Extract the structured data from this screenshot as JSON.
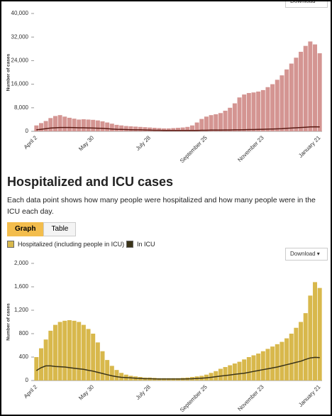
{
  "chart_data": [
    {
      "type": "bar",
      "y_label": "Number of cases",
      "download": "Download",
      "categories": [
        "April 2",
        null,
        null,
        null,
        null,
        null,
        null,
        null,
        null,
        null,
        null,
        null,
        "May 30",
        null,
        null,
        null,
        null,
        null,
        null,
        null,
        null,
        null,
        null,
        null,
        "July 28",
        null,
        null,
        null,
        null,
        null,
        null,
        null,
        null,
        null,
        null,
        null,
        "September 25",
        null,
        null,
        null,
        null,
        null,
        null,
        null,
        null,
        null,
        null,
        null,
        "November 23",
        null,
        null,
        null,
        null,
        null,
        null,
        null,
        null,
        null,
        null,
        null,
        "January 21"
      ],
      "series": [
        {
          "type": "bar",
          "color": "#d49592",
          "values": [
            2000,
            2800,
            3500,
            4500,
            5200,
            5500,
            5000,
            4600,
            4300,
            4000,
            4100,
            4000,
            3900,
            3700,
            3400,
            3000,
            2600,
            2200,
            2000,
            1800,
            1700,
            1600,
            1500,
            1400,
            1300,
            1200,
            1100,
            1000,
            1000,
            1100,
            1200,
            1300,
            1500,
            2000,
            3000,
            4200,
            5000,
            5500,
            5800,
            6200,
            7000,
            8000,
            9500,
            11500,
            12500,
            13000,
            13200,
            13500,
            14000,
            15000,
            16000,
            17500,
            19000,
            21000,
            23000,
            25000,
            27000,
            29000,
            30500,
            29500,
            26500
          ]
        },
        {
          "type": "line",
          "color": "#5a1a14",
          "values": [
            500,
            700,
            900,
            1100,
            1200,
            1300,
            1300,
            1300,
            1250,
            1200,
            1200,
            1150,
            1100,
            1050,
            1000,
            900,
            800,
            700,
            650,
            600,
            550,
            500,
            500,
            450,
            400,
            350,
            350,
            300,
            300,
            300,
            300,
            300,
            300,
            300,
            300,
            350,
            350,
            400,
            400,
            400,
            450,
            450,
            500,
            500,
            550,
            600,
            600,
            650,
            700,
            750,
            800,
            850,
            900,
            1000,
            1100,
            1200,
            1300,
            1400,
            1500,
            1550,
            1500
          ]
        }
      ],
      "ylim": [
        0,
        40000
      ],
      "yticks": [
        0,
        {
          "value": 8000,
          "label": "8,000"
        },
        {
          "value": 16000,
          "label": "16,000"
        },
        {
          "value": 24000,
          "label": "24,000"
        },
        {
          "value": 32000,
          "label": "32,000"
        },
        {
          "value": 40000,
          "label": "40,000"
        }
      ]
    },
    {
      "type": "bar",
      "y_label": "Number of cases",
      "download": "Download",
      "categories": [
        "April 2",
        null,
        null,
        null,
        null,
        null,
        null,
        null,
        null,
        null,
        null,
        null,
        "May 30",
        null,
        null,
        null,
        null,
        null,
        null,
        null,
        null,
        null,
        null,
        null,
        "July 28",
        null,
        null,
        null,
        null,
        null,
        null,
        null,
        null,
        null,
        null,
        null,
        "September 25",
        null,
        null,
        null,
        null,
        null,
        null,
        null,
        null,
        null,
        null,
        null,
        "November 23",
        null,
        null,
        null,
        null,
        null,
        null,
        null,
        null,
        null,
        null,
        null,
        "January 21"
      ],
      "series": [
        {
          "type": "bar",
          "name": "Hospitalized (including people in ICU)",
          "color": "#d8b84c",
          "values": [
            400,
            550,
            700,
            850,
            950,
            1000,
            1020,
            1030,
            1020,
            1000,
            950,
            880,
            800,
            650,
            500,
            350,
            250,
            180,
            130,
            100,
            80,
            70,
            60,
            50,
            50,
            45,
            40,
            40,
            40,
            40,
            40,
            45,
            50,
            60,
            70,
            80,
            100,
            130,
            160,
            200,
            230,
            260,
            290,
            320,
            360,
            400,
            430,
            460,
            500,
            540,
            580,
            620,
            660,
            720,
            800,
            900,
            1000,
            1150,
            1450,
            1680,
            1580
          ]
        },
        {
          "type": "line",
          "name": "In ICU",
          "color": "#3a3318",
          "values": [
            170,
            220,
            250,
            250,
            240,
            235,
            230,
            220,
            210,
            200,
            190,
            175,
            160,
            140,
            120,
            100,
            80,
            65,
            55,
            50,
            45,
            40,
            35,
            30,
            30,
            28,
            25,
            25,
            25,
            25,
            25,
            25,
            28,
            30,
            35,
            40,
            45,
            55,
            65,
            75,
            85,
            95,
            105,
            115,
            125,
            140,
            155,
            170,
            185,
            200,
            215,
            230,
            250,
            270,
            290,
            310,
            330,
            360,
            385,
            395,
            390
          ]
        }
      ],
      "ylim": [
        0,
        2000
      ],
      "yticks": [
        0,
        400,
        800,
        {
          "value": 1200,
          "label": "1,200"
        },
        {
          "value": 1600,
          "label": "1,600"
        },
        {
          "value": 2000,
          "label": "2,000"
        }
      ]
    }
  ],
  "section": {
    "title": "Hospitalized and ICU cases",
    "description": "Each data point shows how many people were hospitalized and how many people were in the ICU each day.",
    "tabs": [
      "Graph",
      "Table"
    ]
  }
}
